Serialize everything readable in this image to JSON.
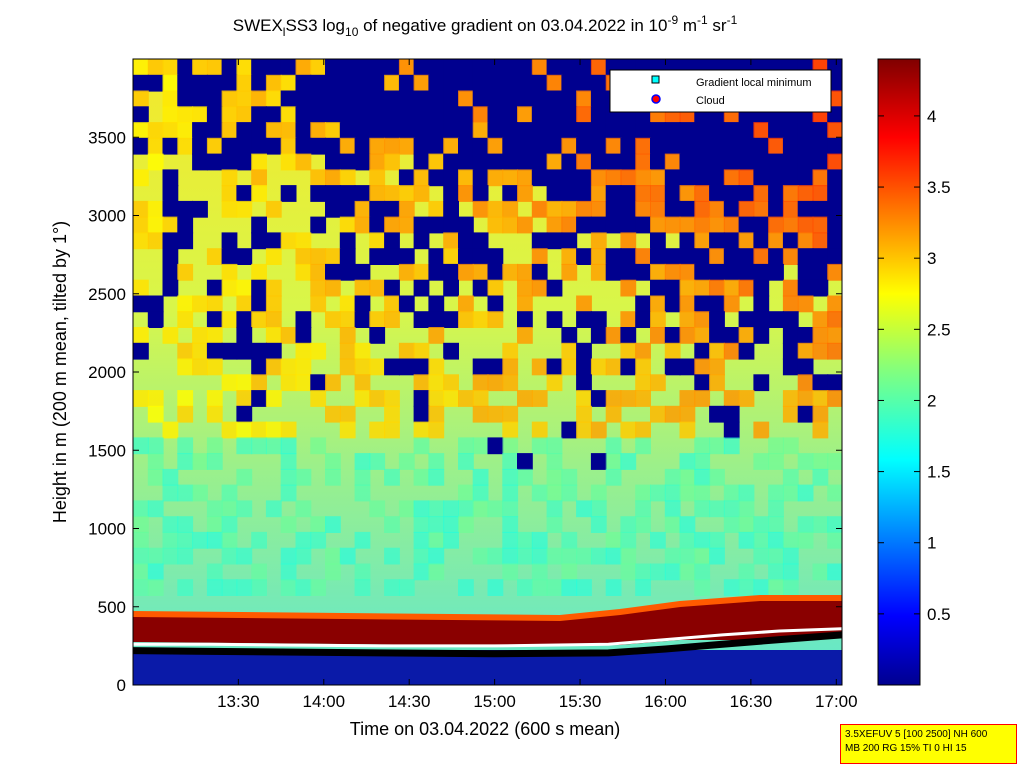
{
  "chart_data": {
    "type": "heatmap",
    "title": {
      "prefix": "SWEX",
      "sub1": "l",
      "mid": "SS3 log",
      "sub2": "10",
      "rest": " of negative gradient on 03.04.2022 in 10",
      "sup1": "-9",
      "unit_m": " m",
      "sup2": "-1",
      "unit_sr": " sr",
      "sup3": "-1"
    },
    "xlabel": "Time on 03.04.2022 (600 s mean)",
    "ylabel": "Height in m (200 m mean, tilted by 1°)",
    "x_ticks": [
      "13:30",
      "14:00",
      "14:30",
      "15:00",
      "15:30",
      "16:00",
      "16:30",
      "17:00"
    ],
    "x_tick_minutes": [
      810,
      840,
      870,
      900,
      930,
      960,
      990,
      1020
    ],
    "x_range_minutes": [
      773,
      1022
    ],
    "y_ticks": [
      0,
      500,
      1000,
      1500,
      2000,
      2500,
      3000,
      3500
    ],
    "y_range": [
      0,
      4000
    ],
    "colorbar": {
      "ticks": [
        "0.5",
        "1",
        "1.5",
        "2",
        "2.5",
        "3",
        "3.5",
        "4"
      ],
      "tick_values": [
        0.5,
        1,
        1.5,
        2,
        2.5,
        3,
        3.5,
        4
      ],
      "range": [
        0,
        4.4
      ],
      "colormap": "jet"
    },
    "legend": {
      "placement": "top-right",
      "entries": [
        {
          "label": "Gradient local minimum",
          "marker": "square",
          "color": "#00ffff"
        },
        {
          "label": "Cloud",
          "marker": "circle",
          "color": "#ff0000"
        }
      ]
    },
    "gradient_min_line": {
      "time_minutes": [
        773,
        800,
        830,
        860,
        900,
        940,
        960,
        980,
        1000,
        1022
      ],
      "height_m": [
        220,
        215,
        210,
        205,
        200,
        205,
        230,
        260,
        290,
        320
      ]
    },
    "cloud_base_line": {
      "time_minutes": [
        773,
        800,
        830,
        860,
        900,
        940,
        960,
        980,
        1000,
        1022
      ],
      "height_m": [
        260,
        260,
        255,
        250,
        250,
        260,
        290,
        320,
        345,
        360
      ]
    },
    "grid": false
  },
  "info_box": {
    "line1": "3.5XEFUV 5 [100 2500] NH 600",
    "line2": "MB 200 RG 15% TI 0 HI 15"
  }
}
